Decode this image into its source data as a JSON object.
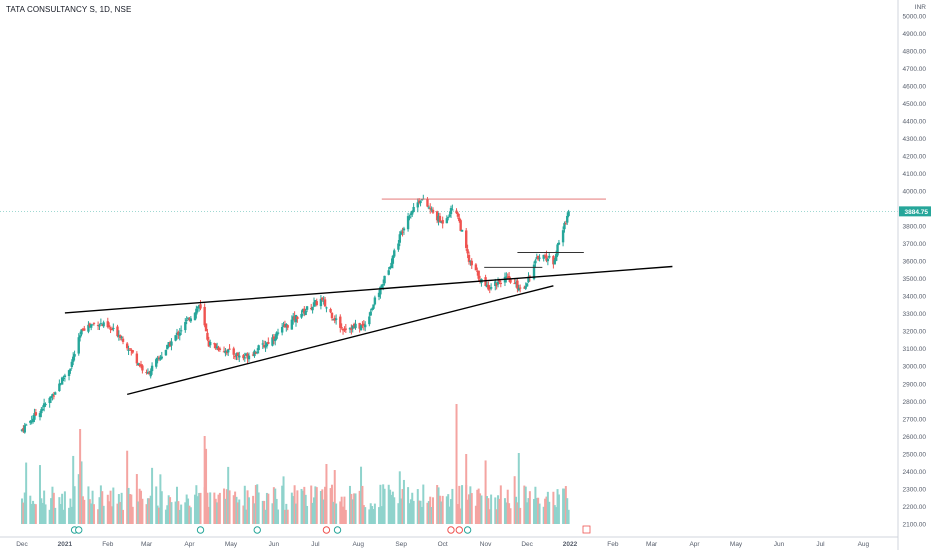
{
  "chart_title": "TATA CONSULTANCY S, 1D, NSE",
  "currency": "INR",
  "colors": {
    "up": "#26a69a",
    "down": "#ef5350",
    "vol_up": "#8fd3cc",
    "vol_down": "#f4a4a1",
    "resistance": "#e06666",
    "trendline": "#000000",
    "last_price_bg": "#26a69a",
    "axis_text": "#555c6a",
    "axis_line": "#d1d4dc"
  },
  "chart_data": {
    "type": "candlestick",
    "x_tick_labels": [
      "Dec",
      "2021",
      "Feb",
      "Mar",
      "Apr",
      "May",
      "Jun",
      "Jul",
      "Aug",
      "Sep",
      "Oct",
      "Nov",
      "Dec",
      "2022",
      "Feb",
      "Mar",
      "Apr",
      "May",
      "Jun",
      "Jul",
      "Aug"
    ],
    "y_tick_labels": [
      "5000.00",
      "4900.00",
      "4800.00",
      "4700.00",
      "4600.00",
      "4500.00",
      "4400.00",
      "4300.00",
      "4200.00",
      "4100.00",
      "4000.00",
      "3900.00",
      "3800.00",
      "3700.00",
      "3600.00",
      "3500.00",
      "3400.00",
      "3300.00",
      "3200.00",
      "3100.00",
      "3000.00",
      "2900.00",
      "2800.00",
      "2700.00",
      "2600.00",
      "2500.00",
      "2400.00",
      "2300.00",
      "2200.00",
      "2100.00"
    ],
    "ylim": [
      2070,
      5010
    ],
    "last_price": "3884.75",
    "close_anchors": [
      {
        "date": "2020-12-01",
        "close": 2640
      },
      {
        "date": "2020-12-20",
        "close": 2800
      },
      {
        "date": "2021-01-05",
        "close": 3000
      },
      {
        "date": "2021-01-14",
        "close": 3220
      },
      {
        "date": "2021-01-25",
        "close": 3250
      },
      {
        "date": "2021-02-10",
        "close": 3180
      },
      {
        "date": "2021-03-01",
        "close": 2950
      },
      {
        "date": "2021-03-20",
        "close": 3150
      },
      {
        "date": "2021-04-08",
        "close": 3350
      },
      {
        "date": "2021-04-15",
        "close": 3130
      },
      {
        "date": "2021-05-10",
        "close": 3050
      },
      {
        "date": "2021-05-25",
        "close": 3120
      },
      {
        "date": "2021-06-20",
        "close": 3300
      },
      {
        "date": "2021-07-05",
        "close": 3380
      },
      {
        "date": "2021-07-20",
        "close": 3220
      },
      {
        "date": "2021-08-05",
        "close": 3230
      },
      {
        "date": "2021-08-20",
        "close": 3500
      },
      {
        "date": "2021-09-05",
        "close": 3850
      },
      {
        "date": "2021-09-15",
        "close": 3960
      },
      {
        "date": "2021-09-30",
        "close": 3820
      },
      {
        "date": "2021-10-10",
        "close": 3920
      },
      {
        "date": "2021-10-20",
        "close": 3600
      },
      {
        "date": "2021-11-01",
        "close": 3450
      },
      {
        "date": "2021-11-15",
        "close": 3500
      },
      {
        "date": "2021-11-28",
        "close": 3440
      },
      {
        "date": "2021-12-10",
        "close": 3640
      },
      {
        "date": "2021-12-20",
        "close": 3600
      },
      {
        "date": "2021-12-31",
        "close": 3884.75
      }
    ],
    "trendlines": [
      {
        "name": "upper-trendline",
        "from": {
          "date": "2021-01-01",
          "price": 3305
        },
        "to": {
          "date": "2022-03-16",
          "price": 3570
        }
      },
      {
        "name": "lower-trendline",
        "from": {
          "date": "2021-02-15",
          "price": 2840
        },
        "to": {
          "date": "2021-12-20",
          "price": 3460
        }
      }
    ],
    "resistance_lines": [
      {
        "name": "resistance-top",
        "from": {
          "date": "2021-08-18",
          "price": 3955
        },
        "to": {
          "date": "2022-01-27",
          "price": 3955
        }
      },
      {
        "name": "resistance-mid",
        "from": {
          "date": "2021-11-24",
          "price": 3650
        },
        "to": {
          "date": "2022-01-11",
          "price": 3650
        }
      },
      {
        "name": "resistance-low",
        "from": {
          "date": "2021-10-31",
          "price": 3565
        },
        "to": {
          "date": "2021-12-12",
          "price": 3565
        }
      }
    ]
  }
}
